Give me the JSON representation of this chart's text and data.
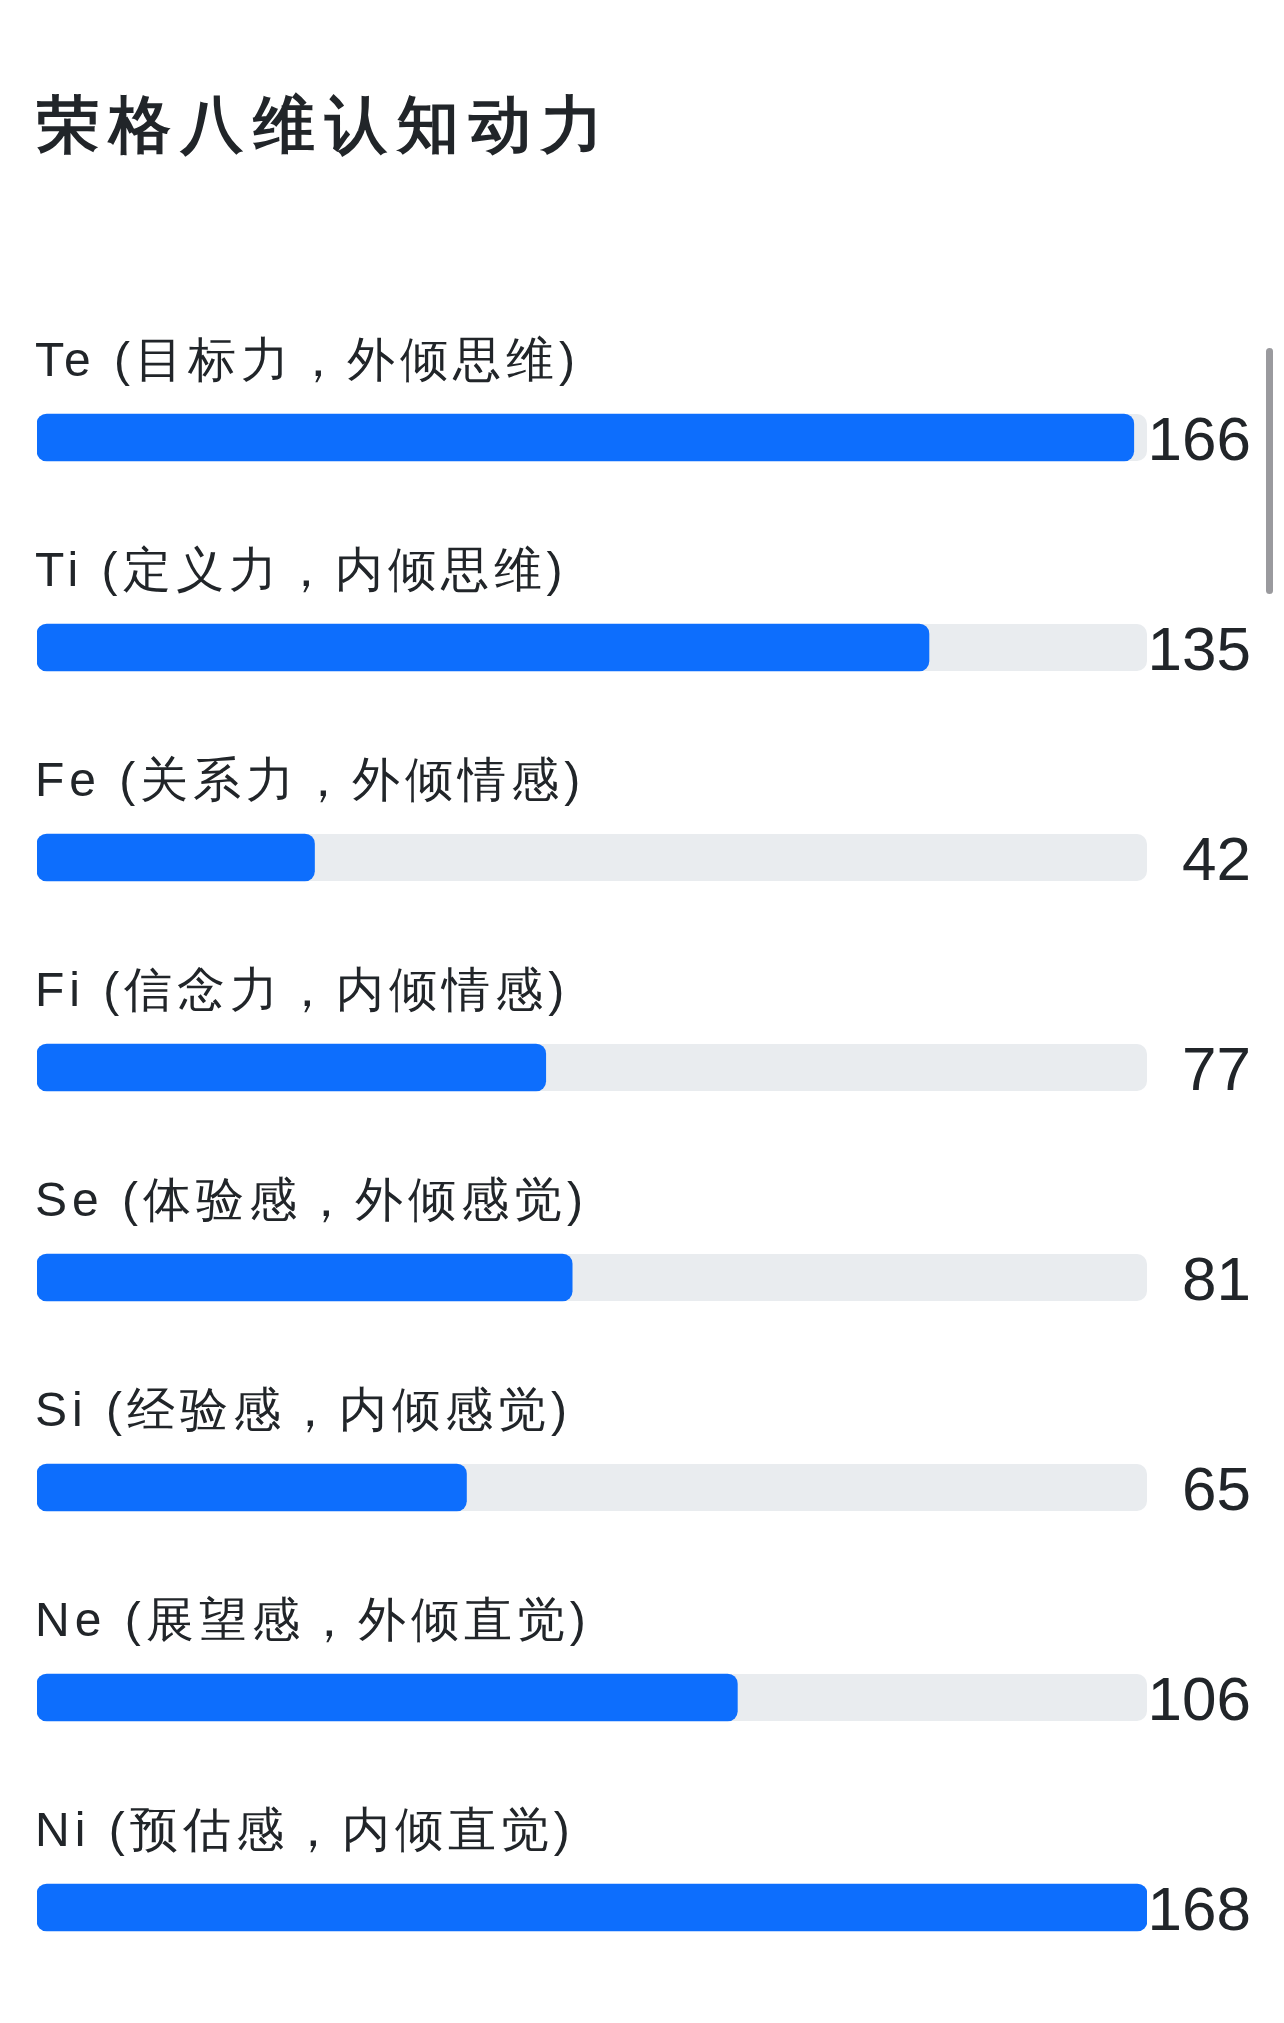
{
  "chart_data": {
    "type": "bar",
    "orientation": "horizontal",
    "title": "荣格八维认知动力",
    "categories": [
      "Te (目标力，外倾思维)",
      "Ti (定义力，内倾思维)",
      "Fe (关系力，外倾情感)",
      "Fi (信念力，内倾情感)",
      "Se (体验感，外倾感觉)",
      "Si (经验感，内倾感觉)",
      "Ne (展望感，外倾直觉)",
      "Ni (预估感，内倾直觉)"
    ],
    "values": [
      166,
      135,
      42,
      77,
      81,
      65,
      106,
      168
    ],
    "color": "#0d6efd",
    "xlim": [
      0,
      168
    ],
    "tick_labels": false,
    "data_labels": true
  }
}
